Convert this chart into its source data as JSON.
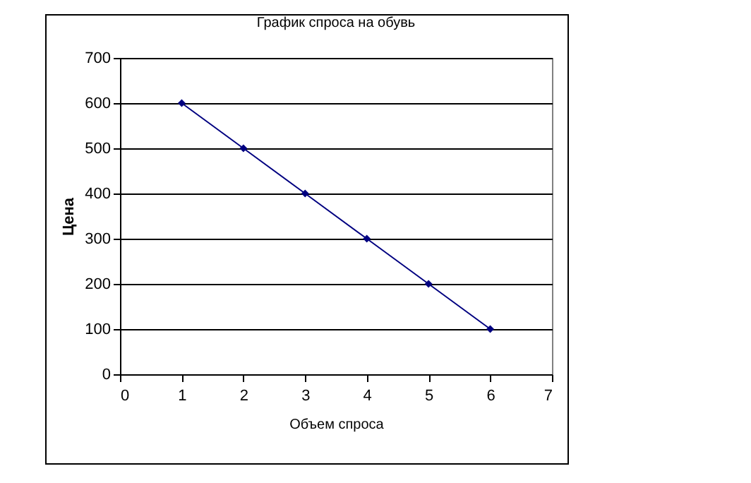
{
  "chart_data": {
    "type": "line",
    "title": "График спроса на обувь",
    "xlabel": "Объем спроса",
    "ylabel": "Цена",
    "x": [
      1,
      2,
      3,
      4,
      5,
      6
    ],
    "series": [
      {
        "color": "#000080",
        "values": [
          600,
          500,
          400,
          300,
          200,
          100
        ]
      }
    ],
    "xlim": [
      0,
      7
    ],
    "xticks": [
      0,
      1,
      2,
      3,
      4,
      5,
      6,
      7
    ],
    "ylim": [
      0,
      700
    ],
    "yticks": [
      0,
      100,
      200,
      300,
      400,
      500,
      600,
      700
    ],
    "grid": "y",
    "marker": "diamond",
    "line_style": "solid"
  }
}
